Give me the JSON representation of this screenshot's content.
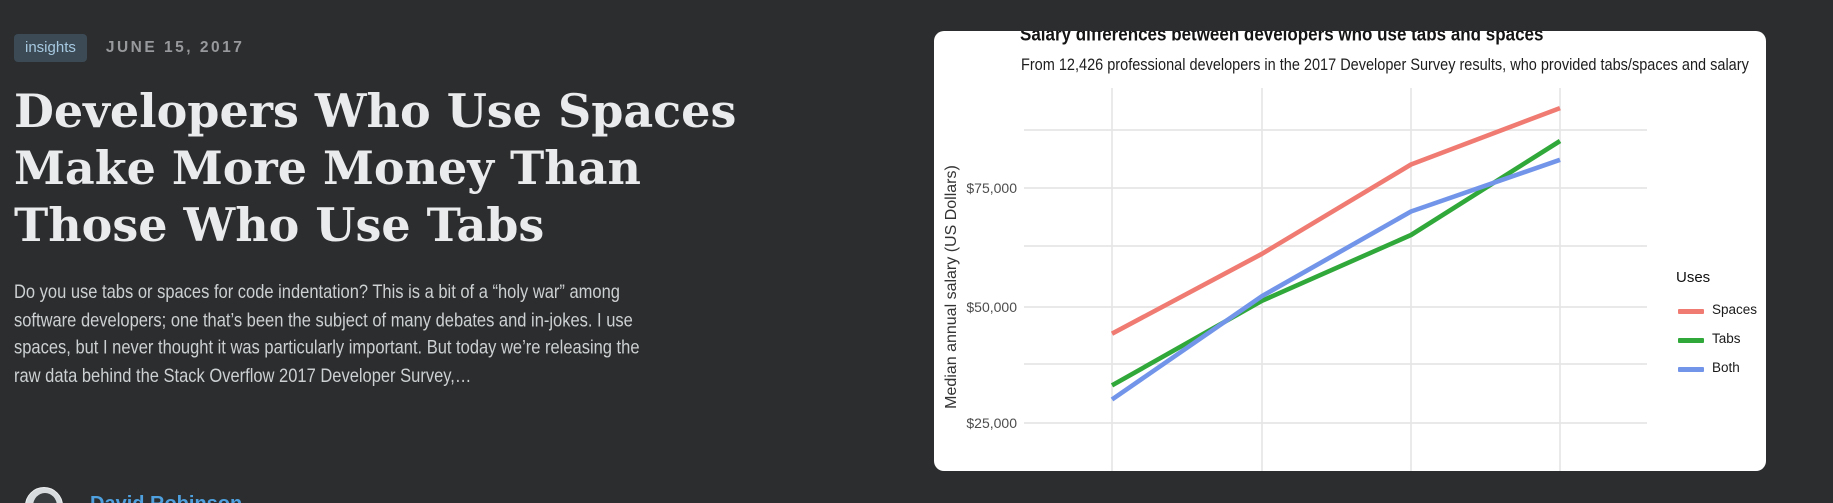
{
  "page": {
    "background": "#2B2D2E",
    "card_background": "#FFFFFF"
  },
  "post": {
    "tag": "insights",
    "date": "JUNE 15, 2017",
    "title": "Developers Who Use Spaces Make More Money Than Those Who Use Tabs",
    "excerpt_lines": [
      "Do you use tabs or spaces for code indentation? This is a bit of a “holy war” among",
      "software developers; one that’s been the subject of many debates and in-jokes. I use",
      "spaces, but I never thought it was particularly important. But today we’re releasing the",
      "raw data behind the Stack Overflow 2017 Developer Survey,…"
    ],
    "author": "David Robinson",
    "accent_link_color": "#4FA0DF",
    "tag_badge_color": "#3C4A55"
  },
  "chart_data": {
    "type": "line",
    "title": "Salary differences between developers who use tabs and spaces",
    "subtitle": "From 12,426 professional developers in the 2017 Developer Survey results, who provided tabs/spaces and salary",
    "ylabel": "Median annual salary (US Dollars)",
    "ytick_labels": [
      "$25,000",
      "$50,000",
      "$75,000"
    ],
    "ytick_values": [
      25000,
      50000,
      75000
    ],
    "ylim": [
      20000,
      96000
    ],
    "x": [
      1,
      2,
      3,
      4
    ],
    "x_axis_labels_visible": false,
    "grid": true,
    "legend_position": "right",
    "legend_title": "Uses",
    "series": [
      {
        "name": "Spaces",
        "color": "#F07B72",
        "values": [
          44000,
          61000,
          80000,
          92000
        ]
      },
      {
        "name": "Tabs",
        "color": "#31A83A",
        "values": [
          33000,
          51000,
          65000,
          85000
        ]
      },
      {
        "name": "Both",
        "color": "#7295EA",
        "values": [
          30000,
          52000,
          70000,
          81000
        ]
      }
    ]
  }
}
